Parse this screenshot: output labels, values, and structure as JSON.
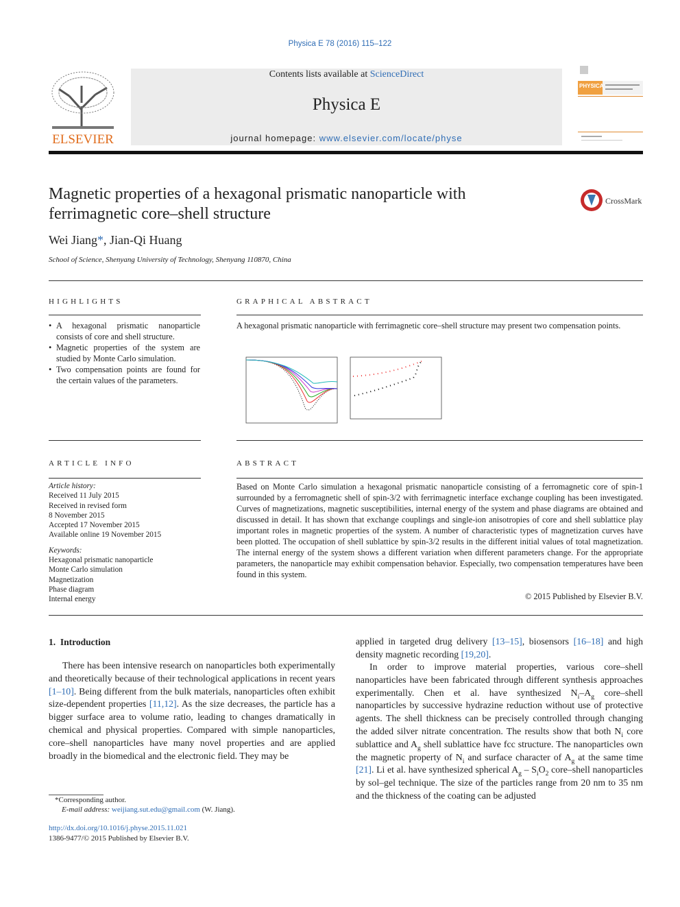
{
  "journal_ref": "Physica E 78 (2016) 115–122",
  "header": {
    "contents": [
      "Contents lists available at ",
      {
        "link": "ScienceDirect"
      }
    ],
    "journal": "Physica E",
    "homepage": [
      "journal homepage: ",
      {
        "link": "www.elsevier.com/locate/physe"
      }
    ],
    "publisher": "ELSEVIER",
    "cover_label": "PHYSICA",
    "crossmark": "CrossMark"
  },
  "article": {
    "title": "Magnetic properties of a hexagonal prismatic nanoparticle with ferrimagnetic core–shell structure",
    "authors": [
      "Wei Jiang",
      {
        "link": "*"
      },
      ", Jian-Qi Huang"
    ],
    "affiliation": "School of Science, Shenyang University of Technology, Shenyang 110870, China"
  },
  "highlights": {
    "heading": "HIGHLIGHTS",
    "items": [
      "A hexagonal prismatic nanoparticle consists of core and shell structure.",
      "Magnetic properties of the system are studied by Monte Carlo simulation.",
      "Two compensation points are found for the certain values of the parameters."
    ]
  },
  "graphical_abstract": {
    "heading": "GRAPHICAL ABSTRACT",
    "text": "A hexagonal prismatic nanoparticle with ferrimagnetic core–shell structure may present two compensation points."
  },
  "article_info": {
    "heading": "ARTICLE INFO",
    "history_label": "Article history:",
    "history": [
      "Received 11 July 2015",
      "Received in revised form",
      "8 November 2015",
      "Accepted 17 November 2015",
      "Available online 19 November 2015"
    ],
    "keywords_label": "Keywords:",
    "keywords": [
      "Hexagonal prismatic nanoparticle",
      "Monte Carlo simulation",
      "Magnetization",
      "Phase diagram",
      "Internal energy"
    ]
  },
  "abstract": {
    "heading": "ABSTRACT",
    "text": "Based on Monte Carlo simulation a hexagonal prismatic nanoparticle consisting of a ferromagnetic core of spin-1 surrounded by a ferromagnetic shell of spin-3/2 with ferrimagnetic interface exchange coupling has been investigated. Curves of magnetizations, magnetic susceptibilities, internal energy of the system and phase diagrams are obtained and discussed in detail. It has shown that exchange couplings and single-ion anisotropies of core and shell sublattice play important roles in magnetic properties of the system. A number of characteristic types of magnetization curves have been plotted. The occupation of shell sublattice by spin-3/2 results in the different initial values of total magnetization. The internal energy of the system shows a different variation when different parameters change. For the appropriate parameters, the nanoparticle may exhibit compensation behavior. Especially, two compensation temperatures have been found in this system.",
    "copyright": "© 2015 Published by Elsevier B.V."
  },
  "introduction": {
    "heading": "1.  Introduction",
    "left": [
      "There has been intensive research on nanoparticles both experimentally and theoretically because of their technological applications in recent years ",
      {
        "link": "[1–10]"
      },
      ". Being different from the bulk materials, nanoparticles often exhibit size-dependent properties ",
      {
        "link": "[11,12]"
      },
      ". As the size decreases, the particle has a bigger surface area to volume ratio, leading to changes dramatically in chemical and physical properties. Compared with simple nanoparticles, core–shell nanoparticles have many novel properties and are applied broadly in the biomedical and the electronic field. They may be"
    ],
    "right_1": [
      "applied in targeted drug delivery ",
      {
        "link": "[13–15]"
      },
      ", biosensors ",
      {
        "link": "[16–18]"
      },
      " and high density magnetic recording ",
      {
        "link": "[19,20]"
      },
      "."
    ],
    "right_2": [
      "In order to improve material properties, various core–shell nanoparticles have been fabricated through different synthesis approaches experimentally. Chen et al. have synthesized N",
      {
        "sub": "i"
      },
      "–A",
      {
        "sub": "g"
      },
      " core–shell nanoparticles by successive hydrazine reduction without use of protective agents. The shell thickness can be precisely controlled through changing the added silver nitrate concentration. The results show that both N",
      {
        "sub": "i"
      },
      " core sublattice and A",
      {
        "sub": "g"
      },
      " shell sublattice have fcc structure. The nanoparticles own the magnetic property of N",
      {
        "sub": "i"
      },
      " and surface character of A",
      {
        "sub": "g"
      },
      " at the same time ",
      {
        "link": "[21]"
      },
      ". Li et al. have synthesized spherical  A",
      {
        "sub": "g"
      },
      " – S",
      {
        "sub": "i"
      },
      "O",
      {
        "sub": "2"
      },
      " core–shell nanoparticles by sol–gel technique. The size of the particles range from 20 nm to 35 nm and the thickness of the coating can be adjusted"
    ]
  },
  "footnotes": {
    "corresponding": "*Corresponding author.",
    "email": [
      {
        "em": "E-mail address: "
      },
      {
        "link": "weijiang.sut.edu@gmail.com"
      },
      " (W. Jiang)."
    ],
    "doi": "http://dx.doi.org/10.1016/j.physe.2015.11.021",
    "issn": "1386-9477/© 2015 Published by Elsevier B.V."
  }
}
